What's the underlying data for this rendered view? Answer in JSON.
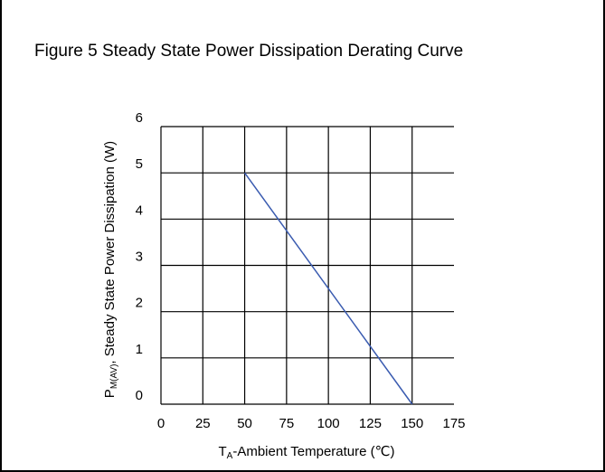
{
  "figure": {
    "title": "Figure 5 Steady State Power Dissipation Derating Curve"
  },
  "chart_data": {
    "type": "line",
    "title": "",
    "xlabel_main": "T",
    "xlabel_sub": "A",
    "xlabel_rest": "-Ambient Temperature (℃)",
    "ylabel_main": "P",
    "ylabel_sub": "M(AV)",
    "ylabel_rest": ", Steady State Power Dissipation (W)",
    "xlim": [
      0,
      175
    ],
    "ylim": [
      0,
      6
    ],
    "xticks": [
      "0",
      "25",
      "50",
      "75",
      "100",
      "125",
      "150",
      "175"
    ],
    "yticks": [
      "0",
      "1",
      "2",
      "3",
      "4",
      "5",
      "6"
    ],
    "grid": true,
    "series": [
      {
        "x": [
          50,
          150
        ],
        "y": [
          5,
          0
        ],
        "color": "#3a5bb0"
      }
    ]
  }
}
